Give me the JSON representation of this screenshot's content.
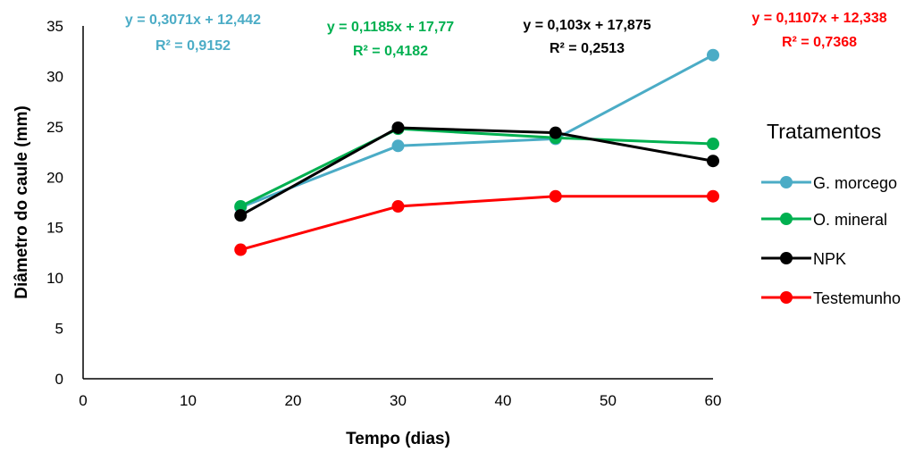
{
  "chart_data": {
    "type": "line",
    "xlabel": "Tempo (dias)",
    "ylabel": "Diâmetro do caule (mm)",
    "xlim": [
      0,
      60
    ],
    "ylim": [
      0,
      35
    ],
    "xticks": [
      0,
      10,
      20,
      30,
      40,
      50,
      60
    ],
    "yticks": [
      0,
      5,
      10,
      15,
      20,
      25,
      30,
      35
    ],
    "x": [
      15,
      30,
      45,
      60
    ],
    "legend_title": "Tratamentos",
    "legend_position": "right",
    "grid": false,
    "series": [
      {
        "name": "G. morcego",
        "color": "#4bacc6",
        "values": [
          17.0,
          23.1,
          23.8,
          32.1
        ],
        "equation": "y = 0,3071x + 12,442",
        "r2": "R² = 0,9152"
      },
      {
        "name": "O. mineral",
        "color": "#00b050",
        "values": [
          17.1,
          24.8,
          23.9,
          23.3
        ],
        "equation": "y = 0,1185x + 17,77",
        "r2": "R² = 0,4182"
      },
      {
        "name": "NPK",
        "color": "#000000",
        "values": [
          16.2,
          24.9,
          24.4,
          21.6
        ],
        "equation": "y = 0,103x + 17,875",
        "r2": "R² = 0,2513"
      },
      {
        "name": "Testemunho",
        "color": "#ff0000",
        "values": [
          12.8,
          17.1,
          18.1,
          18.1
        ],
        "equation": "y = 0,1107x + 12,338",
        "r2": "R² = 0,7368"
      }
    ]
  }
}
